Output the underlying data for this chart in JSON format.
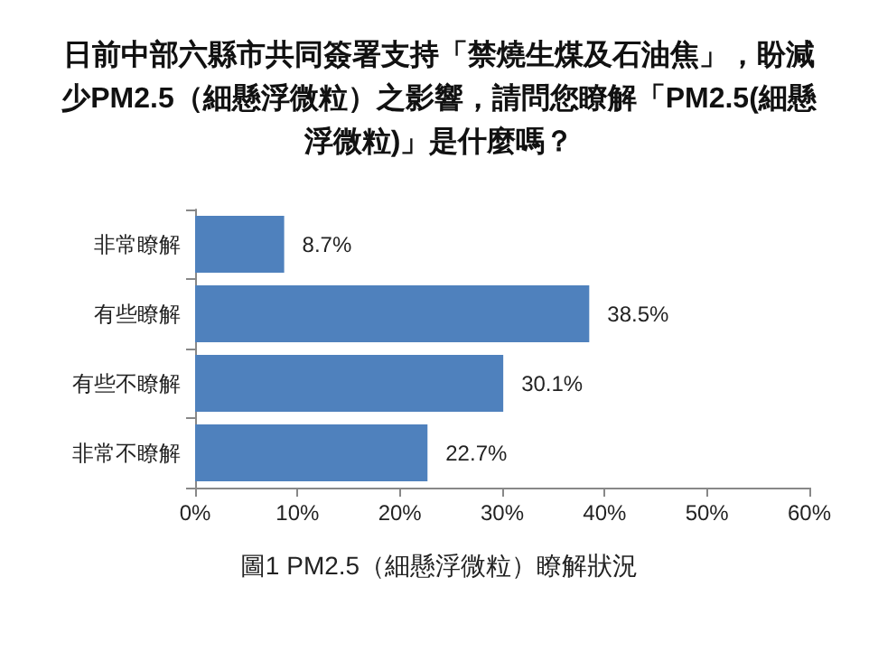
{
  "chart_data": {
    "type": "bar",
    "orientation": "horizontal",
    "title": "日前中部六縣市共同簽署支持「禁燒生煤及石油焦」，盼減少PM2.5（細懸浮微粒）之影響，請問您瞭解「PM2.5(細懸浮微粒)」是什麼嗎？",
    "categories": [
      "非常瞭解",
      "有些瞭解",
      "有些不瞭解",
      "非常不瞭解"
    ],
    "values": [
      8.7,
      38.5,
      30.1,
      22.7
    ],
    "value_labels": [
      "8.7%",
      "38.5%",
      "30.1%",
      "22.7%"
    ],
    "color": "#4f81bd",
    "xlim": [
      0,
      60
    ],
    "xticks": [
      {
        "value": 0,
        "label": "0%"
      },
      {
        "value": 10,
        "label": "10%"
      },
      {
        "value": 20,
        "label": "20%"
      },
      {
        "value": 30,
        "label": "30%"
      },
      {
        "value": 40,
        "label": "40%"
      },
      {
        "value": 50,
        "label": "50%"
      },
      {
        "value": 60,
        "label": "60%"
      }
    ],
    "grid": false,
    "annotations": [
      "圖1 PM2.5（細懸浮微粒）瞭解狀況"
    ]
  }
}
